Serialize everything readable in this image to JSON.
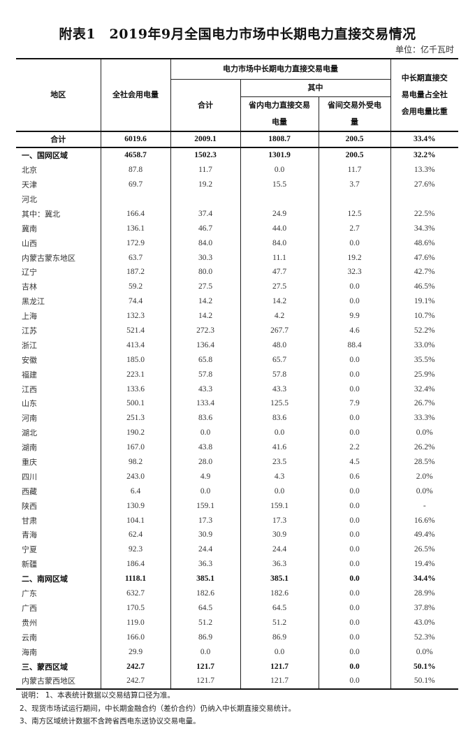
{
  "title": "附表1　2019年9月全国电力市场中长期电力直接交易情况",
  "unit": "单位：亿千瓦时",
  "headers": {
    "region": "地区",
    "total_consumption": "全社会用电量",
    "direct_trade_group": "电力市场中长期电力直接交易电量",
    "subtotal": "合计",
    "of_which": "其中",
    "intra_province": "省内电力直接交易电量",
    "inter_province": "省间交易外受电量",
    "ratio": "中长期直接交易电量占全社会用电量比重"
  },
  "rows": [
    {
      "region": "合计",
      "total": "6019.6",
      "sum": "2009.1",
      "intra": "1808.7",
      "inter": "200.5",
      "ratio": "33.4%",
      "style": "total"
    },
    {
      "region": "一、国网区域",
      "total": "4658.7",
      "sum": "1502.3",
      "intra": "1301.9",
      "inter": "200.5",
      "ratio": "32.2%",
      "style": "bold"
    },
    {
      "region": "北京",
      "total": "87.8",
      "sum": "11.7",
      "intra": "0.0",
      "inter": "11.7",
      "ratio": "13.3%"
    },
    {
      "region": "天津",
      "total": "69.7",
      "sum": "19.2",
      "intra": "15.5",
      "inter": "3.7",
      "ratio": "27.6%"
    },
    {
      "region": "河北",
      "total": "",
      "sum": "",
      "intra": "",
      "inter": "",
      "ratio": ""
    },
    {
      "region": "其中：冀北",
      "total": "166.4",
      "sum": "37.4",
      "intra": "24.9",
      "inter": "12.5",
      "ratio": "22.5%"
    },
    {
      "region": "冀南",
      "total": "136.1",
      "sum": "46.7",
      "intra": "44.0",
      "inter": "2.7",
      "ratio": "34.3%"
    },
    {
      "region": "山西",
      "total": "172.9",
      "sum": "84.0",
      "intra": "84.0",
      "inter": "0.0",
      "ratio": "48.6%"
    },
    {
      "region": "内蒙古蒙东地区",
      "total": "63.7",
      "sum": "30.3",
      "intra": "11.1",
      "inter": "19.2",
      "ratio": "47.6%"
    },
    {
      "region": "辽宁",
      "total": "187.2",
      "sum": "80.0",
      "intra": "47.7",
      "inter": "32.3",
      "ratio": "42.7%"
    },
    {
      "region": "吉林",
      "total": "59.2",
      "sum": "27.5",
      "intra": "27.5",
      "inter": "0.0",
      "ratio": "46.5%"
    },
    {
      "region": "黑龙江",
      "total": "74.4",
      "sum": "14.2",
      "intra": "14.2",
      "inter": "0.0",
      "ratio": "19.1%"
    },
    {
      "region": "上海",
      "total": "132.3",
      "sum": "14.2",
      "intra": "4.2",
      "inter": "9.9",
      "ratio": "10.7%"
    },
    {
      "region": "江苏",
      "total": "521.4",
      "sum": "272.3",
      "intra": "267.7",
      "inter": "4.6",
      "ratio": "52.2%"
    },
    {
      "region": "浙江",
      "total": "413.4",
      "sum": "136.4",
      "intra": "48.0",
      "inter": "88.4",
      "ratio": "33.0%"
    },
    {
      "region": "安徽",
      "total": "185.0",
      "sum": "65.8",
      "intra": "65.7",
      "inter": "0.0",
      "ratio": "35.5%"
    },
    {
      "region": "福建",
      "total": "223.1",
      "sum": "57.8",
      "intra": "57.8",
      "inter": "0.0",
      "ratio": "25.9%"
    },
    {
      "region": "江西",
      "total": "133.6",
      "sum": "43.3",
      "intra": "43.3",
      "inter": "0.0",
      "ratio": "32.4%"
    },
    {
      "region": "山东",
      "total": "500.1",
      "sum": "133.4",
      "intra": "125.5",
      "inter": "7.9",
      "ratio": "26.7%"
    },
    {
      "region": "河南",
      "total": "251.3",
      "sum": "83.6",
      "intra": "83.6",
      "inter": "0.0",
      "ratio": "33.3%"
    },
    {
      "region": "湖北",
      "total": "190.2",
      "sum": "0.0",
      "intra": "0.0",
      "inter": "0.0",
      "ratio": "0.0%"
    },
    {
      "region": "湖南",
      "total": "167.0",
      "sum": "43.8",
      "intra": "41.6",
      "inter": "2.2",
      "ratio": "26.2%"
    },
    {
      "region": "重庆",
      "total": "98.2",
      "sum": "28.0",
      "intra": "23.5",
      "inter": "4.5",
      "ratio": "28.5%"
    },
    {
      "region": "四川",
      "total": "243.0",
      "sum": "4.9",
      "intra": "4.3",
      "inter": "0.6",
      "ratio": "2.0%"
    },
    {
      "region": "西藏",
      "total": "6.4",
      "sum": "0.0",
      "intra": "0.0",
      "inter": "0.0",
      "ratio": "0.0%"
    },
    {
      "region": "陕西",
      "total": "130.9",
      "sum": "159.1",
      "intra": "159.1",
      "inter": "0.0",
      "ratio": "-"
    },
    {
      "region": "甘肃",
      "total": "104.1",
      "sum": "17.3",
      "intra": "17.3",
      "inter": "0.0",
      "ratio": "16.6%"
    },
    {
      "region": "青海",
      "total": "62.4",
      "sum": "30.9",
      "intra": "30.9",
      "inter": "0.0",
      "ratio": "49.4%"
    },
    {
      "region": "宁夏",
      "total": "92.3",
      "sum": "24.4",
      "intra": "24.4",
      "inter": "0.0",
      "ratio": "26.5%"
    },
    {
      "region": "新疆",
      "total": "186.4",
      "sum": "36.3",
      "intra": "36.3",
      "inter": "0.0",
      "ratio": "19.4%"
    },
    {
      "region": "二、南网区域",
      "total": "1118.1",
      "sum": "385.1",
      "intra": "385.1",
      "inter": "0.0",
      "ratio": "34.4%",
      "style": "bold"
    },
    {
      "region": "广东",
      "total": "632.7",
      "sum": "182.6",
      "intra": "182.6",
      "inter": "0.0",
      "ratio": "28.9%"
    },
    {
      "region": "广西",
      "total": "170.5",
      "sum": "64.5",
      "intra": "64.5",
      "inter": "0.0",
      "ratio": "37.8%"
    },
    {
      "region": "贵州",
      "total": "119.0",
      "sum": "51.2",
      "intra": "51.2",
      "inter": "0.0",
      "ratio": "43.0%"
    },
    {
      "region": "云南",
      "total": "166.0",
      "sum": "86.9",
      "intra": "86.9",
      "inter": "0.0",
      "ratio": "52.3%"
    },
    {
      "region": "海南",
      "total": "29.9",
      "sum": "0.0",
      "intra": "0.0",
      "inter": "0.0",
      "ratio": "0.0%"
    },
    {
      "region": "三、蒙西区域",
      "total": "242.7",
      "sum": "121.7",
      "intra": "121.7",
      "inter": "0.0",
      "ratio": "50.1%",
      "style": "bold"
    },
    {
      "region": "内蒙古蒙西地区",
      "total": "242.7",
      "sum": "121.7",
      "intra": "121.7",
      "inter": "0.0",
      "ratio": "50.1%"
    }
  ],
  "notes": [
    "说明：  1、本表统计数据以交易结算口径为准。",
    "2、现货市场试运行期间，中长期金融合约（差价合约）仍纳入中长期直接交易统计。",
    "3、南方区域统计数据不含跨省西电东送协议交易电量。"
  ]
}
